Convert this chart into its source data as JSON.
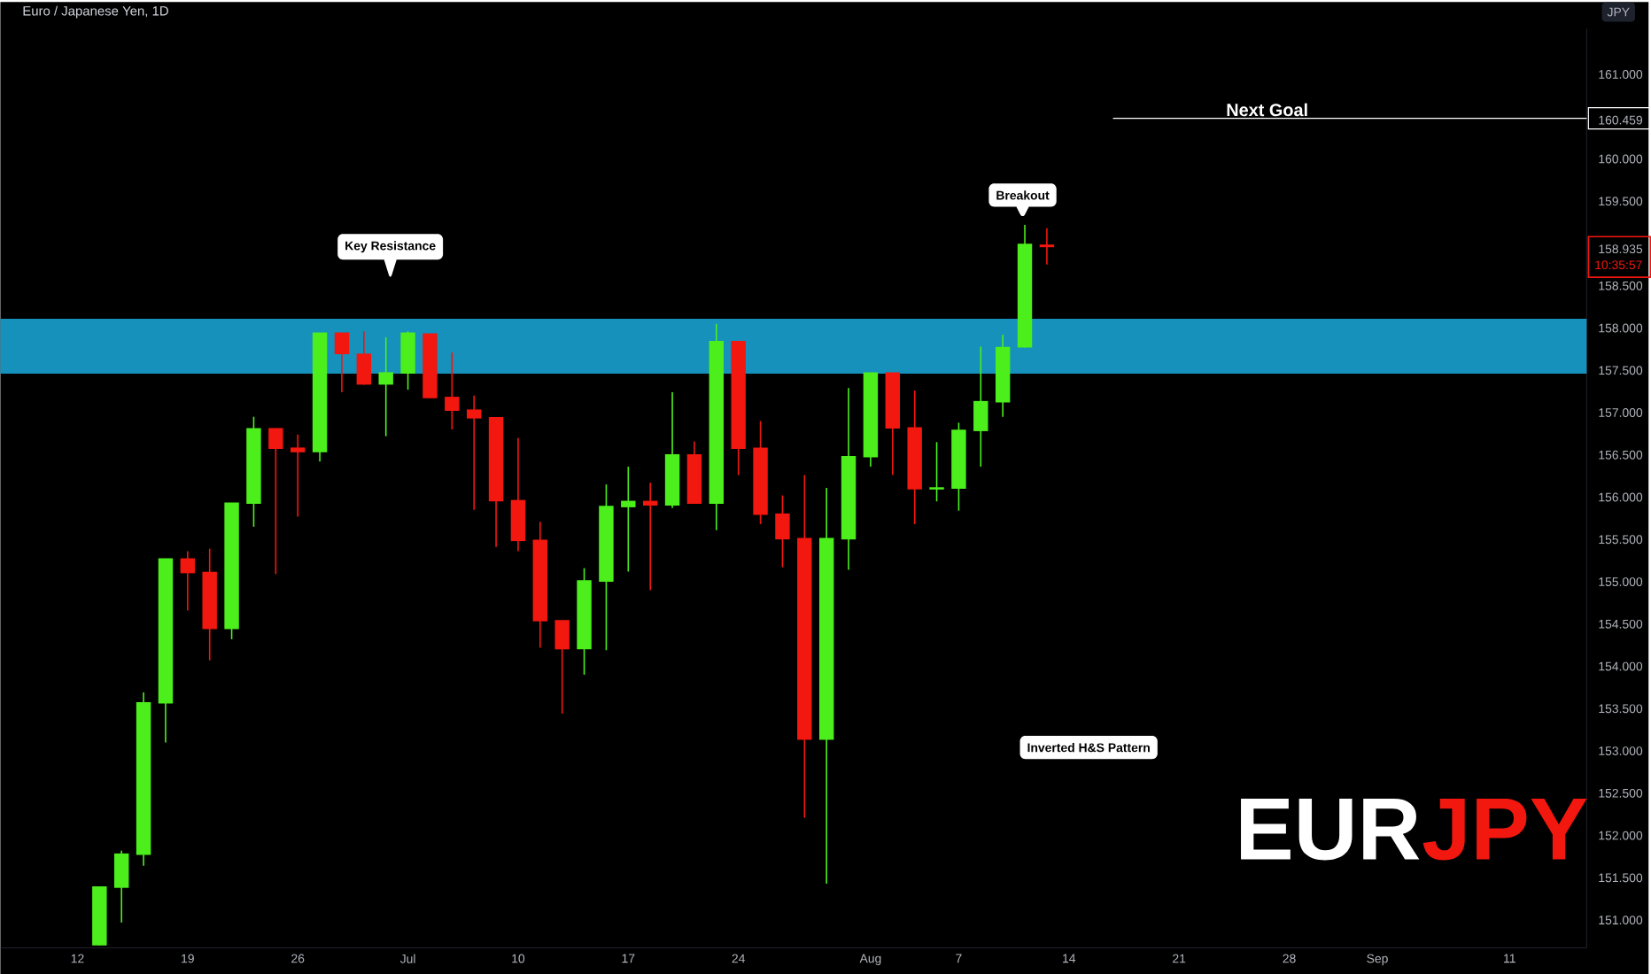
{
  "chart_data": {
    "type": "candlestick",
    "title": "Euro / Japanese Yen, 1D",
    "ylabel": "JPY",
    "annotations": [
      "Key Resistance",
      "Breakout",
      "Inverted H&S Pattern",
      "10:35:57",
      "EUR",
      "JPY"
    ],
    "categories": [
      null,
      null,
      null,
      "12",
      null,
      null,
      null,
      null,
      "19",
      null,
      null,
      null,
      null,
      "26",
      null,
      null,
      null,
      null,
      "Jul",
      null,
      null,
      null,
      null,
      "10",
      null,
      null,
      null,
      null,
      "17",
      null,
      null,
      null,
      null,
      "24",
      null,
      null,
      null,
      null,
      null,
      "Aug",
      null,
      null,
      null,
      "7",
      null,
      null,
      null,
      null,
      "14",
      null,
      null,
      null,
      null,
      "21",
      null,
      null,
      null,
      null,
      "28",
      null,
      null,
      null,
      "Sep",
      null,
      null,
      null,
      null,
      null,
      "11",
      null,
      null,
      null
    ],
    "ohlc": [
      null,
      null,
      null,
      null,
      [
        150.68,
        151.36,
        150.68,
        151.36
      ],
      [
        151.36,
        151.8,
        150.95,
        151.75
      ],
      [
        151.75,
        153.67,
        151.62,
        153.54
      ],
      [
        153.54,
        155.24,
        153.08,
        155.24
      ],
      [
        155.24,
        155.34,
        154.64,
        155.08
      ],
      [
        155.08,
        155.37,
        154.05,
        154.42
      ],
      [
        154.42,
        155.9,
        154.3,
        155.9
      ],
      [
        155.9,
        156.93,
        155.63,
        156.78
      ],
      [
        156.78,
        156.78,
        155.07,
        156.55
      ],
      [
        156.55,
        156.72,
        155.75,
        156.51
      ],
      [
        156.51,
        157.91,
        156.4,
        157.91
      ],
      [
        157.91,
        157.91,
        157.22,
        157.67
      ],
      [
        157.66,
        157.94,
        157.31,
        157.31
      ],
      [
        157.31,
        157.87,
        156.7,
        157.44
      ],
      [
        157.44,
        157.94,
        157.25,
        157.91
      ],
      [
        157.9,
        157.9,
        157.15,
        157.15
      ],
      [
        157.15,
        157.69,
        156.78,
        157.0
      ],
      [
        157.0,
        157.18,
        155.83,
        156.91
      ],
      [
        156.91,
        156.91,
        155.39,
        155.93
      ],
      [
        155.93,
        156.68,
        155.34,
        155.46
      ],
      [
        155.46,
        155.69,
        154.2,
        154.51
      ],
      [
        154.51,
        154.51,
        153.42,
        154.18
      ],
      [
        154.18,
        155.14,
        153.88,
        154.98
      ],
      [
        154.98,
        156.13,
        154.17,
        155.86
      ],
      [
        155.86,
        156.34,
        155.1,
        155.92
      ],
      [
        155.92,
        156.15,
        154.88,
        155.88
      ],
      [
        155.88,
        157.22,
        155.85,
        156.47
      ],
      [
        156.47,
        156.64,
        155.9,
        155.9
      ],
      [
        155.9,
        158.03,
        155.59,
        157.81
      ],
      [
        157.81,
        157.81,
        156.24,
        156.55
      ],
      [
        156.55,
        156.88,
        155.66,
        155.77
      ],
      [
        155.77,
        156.0,
        155.15,
        155.48
      ],
      [
        155.48,
        156.24,
        152.19,
        153.11
      ],
      [
        153.11,
        156.09,
        151.41,
        155.48
      ],
      [
        155.48,
        157.27,
        155.12,
        156.45
      ],
      [
        156.45,
        157.44,
        156.34,
        157.44
      ],
      [
        157.44,
        157.44,
        156.24,
        156.79
      ],
      [
        156.79,
        157.24,
        155.66,
        156.07
      ],
      [
        156.07,
        156.63,
        155.93,
        156.08
      ],
      [
        156.08,
        156.86,
        155.82,
        156.76
      ],
      [
        156.76,
        157.76,
        156.34,
        157.1
      ],
      [
        157.1,
        157.9,
        156.93,
        157.74
      ],
      [
        157.75,
        159.2,
        157.75,
        158.96
      ],
      [
        158.95,
        159.16,
        158.73,
        158.935
      ],
      null,
      null,
      null,
      null,
      null,
      null,
      null,
      null,
      null,
      null,
      null,
      null,
      null,
      null,
      null,
      null,
      null,
      null,
      null,
      null,
      null,
      null,
      null,
      null
    ],
    "colors": [
      null,
      null,
      null,
      null,
      "#4cef1c",
      "#4cef1c",
      "#4cef1c",
      "#4cef1c",
      "#f2170f",
      "#f2170f",
      "#4cef1c",
      "#4cef1c",
      "#f2170f",
      "#f2170f",
      "#4cef1c",
      "#f2170f",
      "#f2170f",
      "#4cef1c",
      "#4cef1c",
      "#f2170f",
      "#f2170f",
      "#f2170f",
      "#f2170f",
      "#f2170f",
      "#f2170f",
      "#f2170f",
      "#4cef1c",
      "#4cef1c",
      "#4cef1c",
      "#f2170f",
      "#4cef1c",
      "#f2170f",
      "#4cef1c",
      "#f2170f",
      "#f2170f",
      "#f2170f",
      "#f2170f",
      "#4cef1c",
      "#4cef1c",
      "#4cef1c",
      "#f2170f",
      "#f2170f",
      "#4cef1c",
      "#4cef1c",
      "#4cef1c",
      "#4cef1c",
      "#4cef1c",
      "#f2170f",
      null,
      null,
      null,
      null,
      null,
      null,
      null,
      null,
      null,
      null,
      null,
      null,
      null,
      null,
      null,
      null,
      null,
      null,
      null,
      null,
      null,
      null,
      null,
      null
    ],
    "ylim": [
      150.65,
      161.52
    ],
    "yticks": [
      {
        "value": 151,
        "label": "151.000"
      },
      {
        "value": 151.5,
        "label": "151.500"
      },
      {
        "value": 152,
        "label": "152.000"
      },
      {
        "value": 152.5,
        "label": "152.500"
      },
      {
        "value": 153,
        "label": "153.000"
      },
      {
        "value": 153.5,
        "label": "153.500"
      },
      {
        "value": 154,
        "label": "154.000"
      },
      {
        "value": 154.5,
        "label": "154.500"
      },
      {
        "value": 155,
        "label": "155.000"
      },
      {
        "value": 155.5,
        "label": "155.500"
      },
      {
        "value": 156,
        "label": "156.000"
      },
      {
        "value": 156.5,
        "label": "156.500"
      },
      {
        "value": 157,
        "label": "157.000"
      },
      {
        "value": 157.5,
        "label": "157.500"
      },
      {
        "value": 158,
        "label": "158.000"
      },
      {
        "value": 158.5,
        "label": "158.500"
      },
      158.935,
      {
        "value": 159.5,
        "label": "159.500"
      },
      {
        "value": 160,
        "label": "160.000"
      },
      160.459,
      {
        "value": 161,
        "label": "161.000"
      }
    ],
    "bands": [
      {
        "axis": "y",
        "from": 157.44,
        "to": 158.09,
        "color": "#1591bb"
      }
    ],
    "ref_lines": [
      {
        "axis": "y",
        "value": 160.459,
        "label": "Next Goal",
        "color": "#ffffff"
      }
    ]
  }
}
